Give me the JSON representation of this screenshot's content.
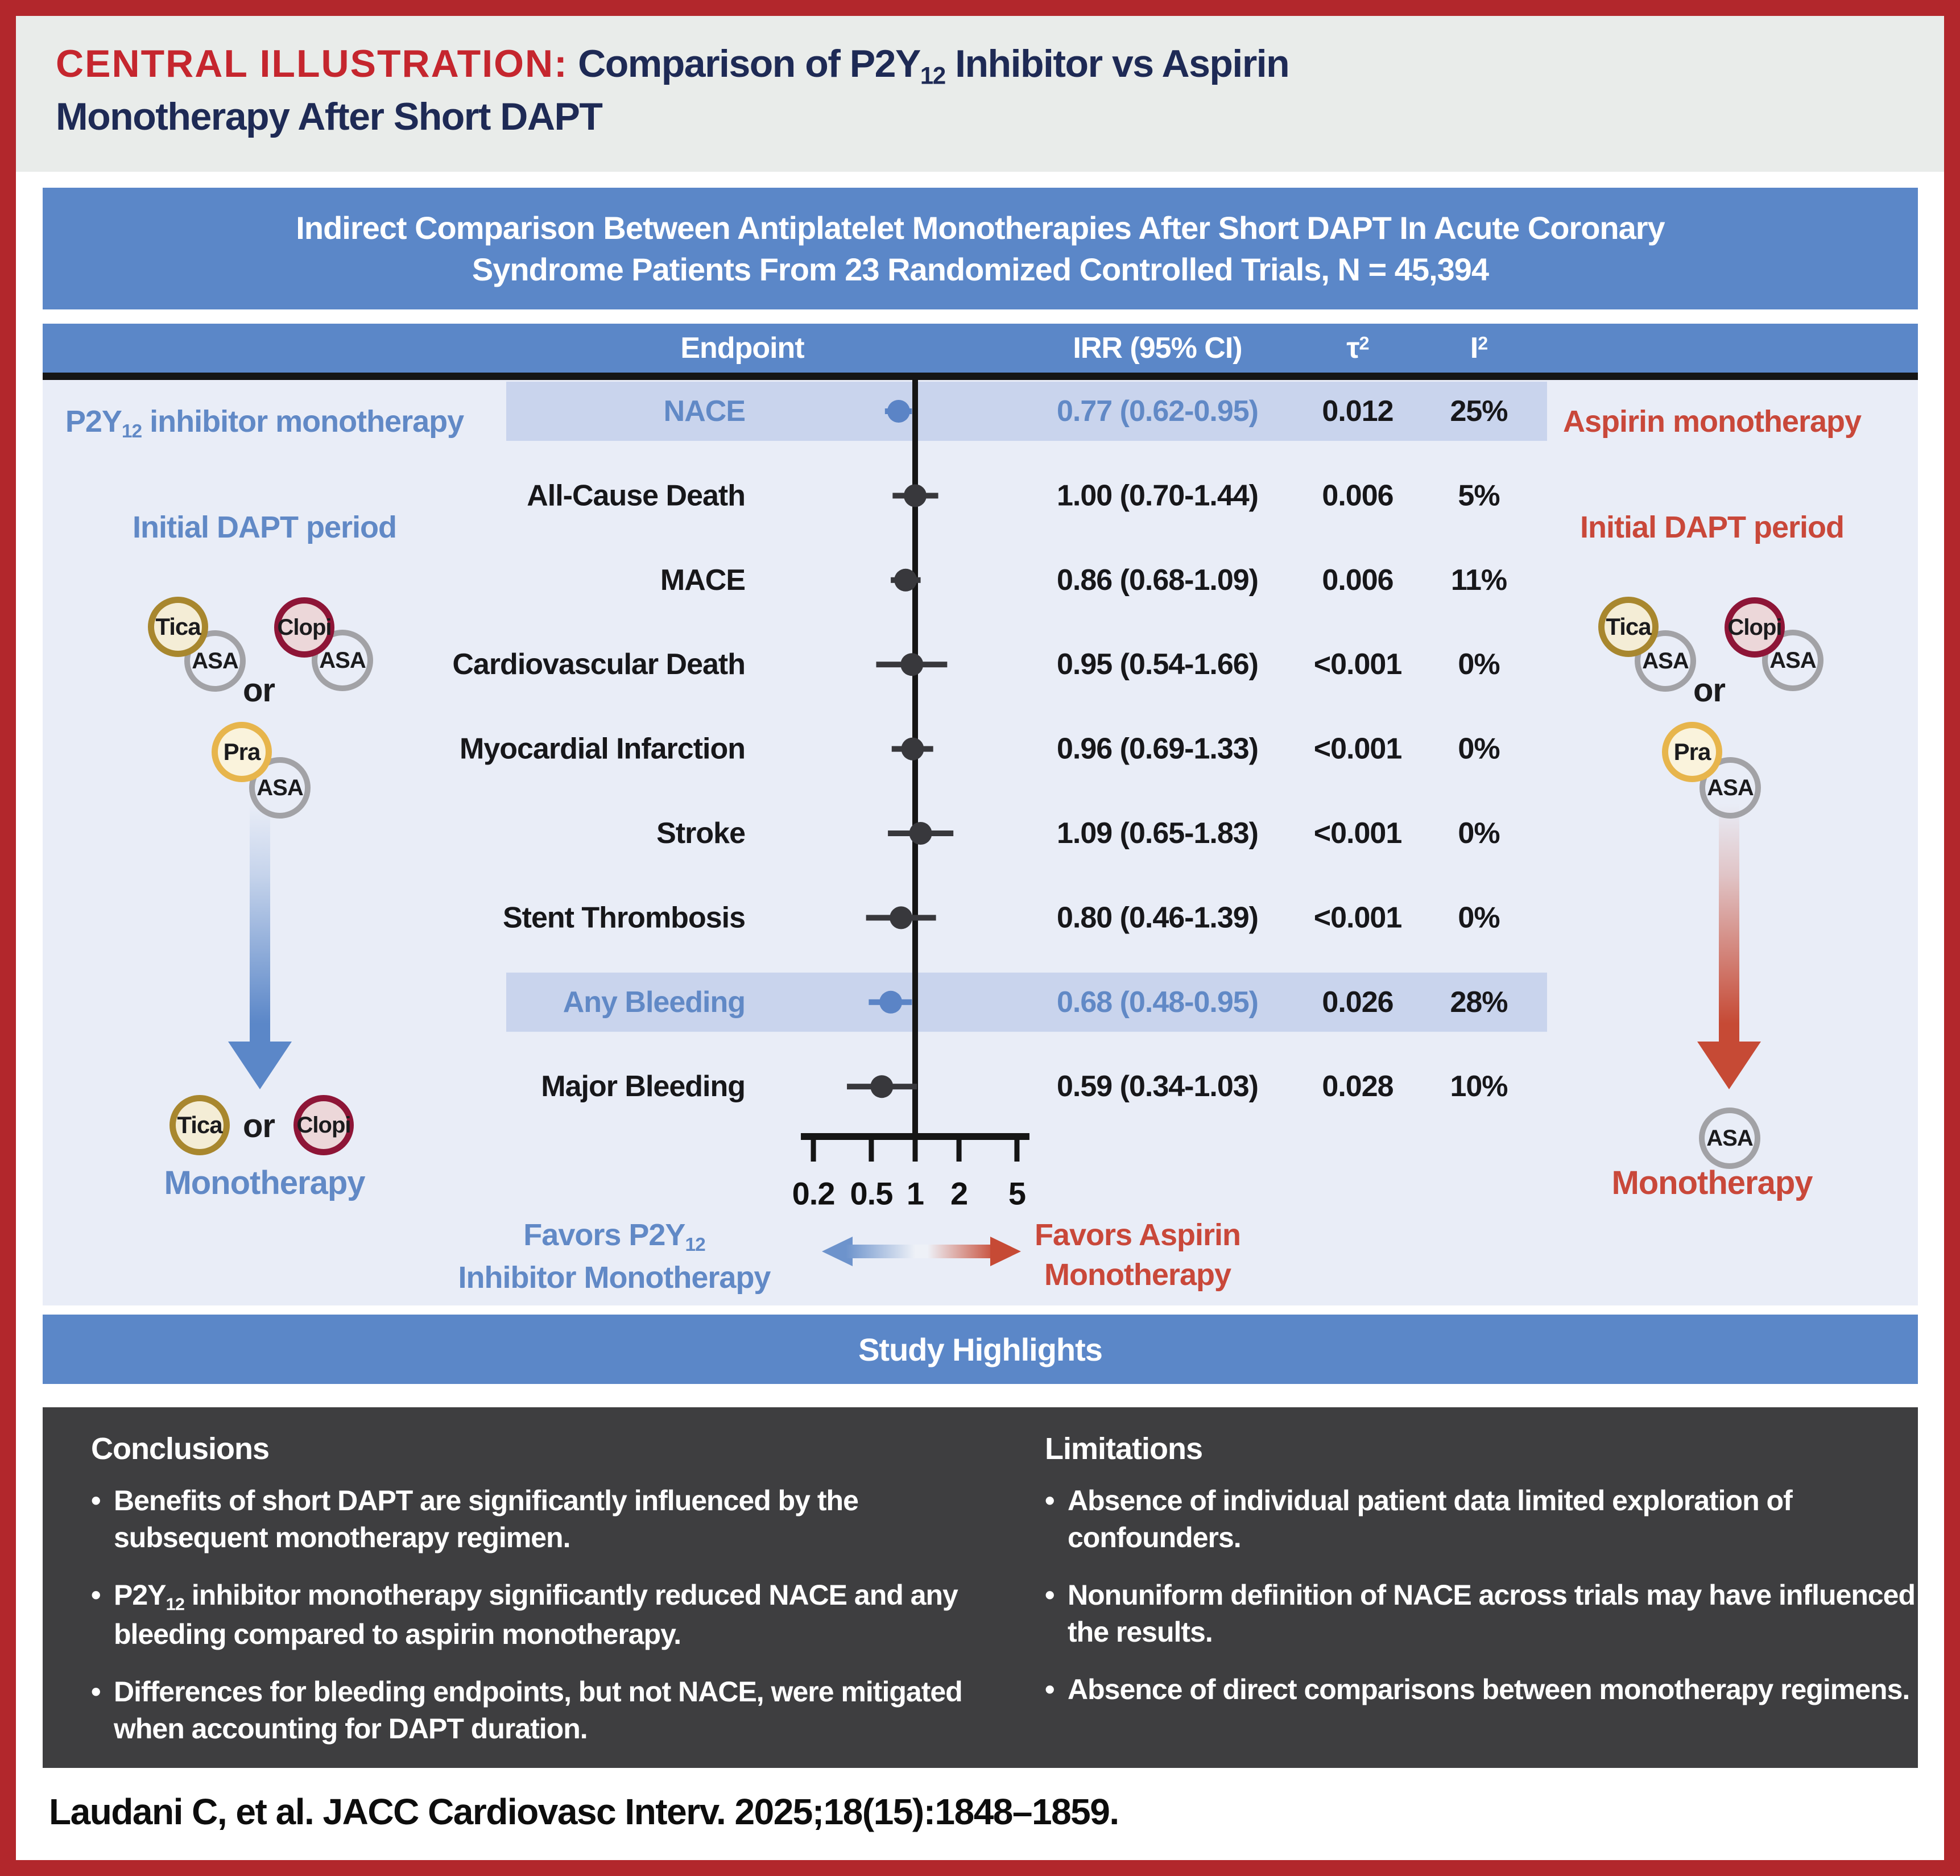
{
  "title": {
    "label": "CENTRAL ILLUSTRATION:",
    "rest_prefix": " Comparison of P2Y",
    "rest_sub": "12",
    "rest_line1_suffix": " Inhibitor vs Aspirin",
    "line2": "Monotherapy After Short DAPT"
  },
  "banner": {
    "line1": "Indirect Comparison Between Antiplatelet Monotherapies After Short DAPT In Acute Coronary",
    "line2": "Syndrome Patients From 23 Randomized Controlled Trials, N = 45,394"
  },
  "table_header": {
    "endpoint": "Endpoint",
    "irr": "IRR (95% CI)",
    "tau_base": "τ",
    "tau_sup": "2",
    "i_base": "I",
    "i_sup": "2"
  },
  "chart_data": {
    "type": "forest",
    "x_scale": "log",
    "null_line": 1,
    "x_ticks": [
      "0.2",
      "0.5",
      "1",
      "2",
      "5"
    ],
    "x_tick_values": [
      0.2,
      0.5,
      1,
      2,
      5
    ],
    "columns": [
      "Endpoint",
      "IRR (95% CI)",
      "τ2",
      "I2"
    ],
    "rows": [
      {
        "endpoint": "NACE",
        "irr_text": "0.77 (0.62-0.95)",
        "est": 0.77,
        "lo": 0.62,
        "hi": 0.95,
        "tau2": "0.012",
        "i2": "25%",
        "highlight": true
      },
      {
        "endpoint": "All-Cause Death",
        "irr_text": "1.00 (0.70-1.44)",
        "est": 1.0,
        "lo": 0.7,
        "hi": 1.44,
        "tau2": "0.006",
        "i2": "5%",
        "highlight": false
      },
      {
        "endpoint": "MACE",
        "irr_text": "0.86 (0.68-1.09)",
        "est": 0.86,
        "lo": 0.68,
        "hi": 1.09,
        "tau2": "0.006",
        "i2": "11%",
        "highlight": false
      },
      {
        "endpoint": "Cardiovascular Death",
        "irr_text": "0.95 (0.54-1.66)",
        "est": 0.95,
        "lo": 0.54,
        "hi": 1.66,
        "tau2": "<0.001",
        "i2": "0%",
        "highlight": false
      },
      {
        "endpoint": "Myocardial Infarction",
        "irr_text": "0.96 (0.69-1.33)",
        "est": 0.96,
        "lo": 0.69,
        "hi": 1.33,
        "tau2": "<0.001",
        "i2": "0%",
        "highlight": false
      },
      {
        "endpoint": "Stroke",
        "irr_text": "1.09 (0.65-1.83)",
        "est": 1.09,
        "lo": 0.65,
        "hi": 1.83,
        "tau2": "<0.001",
        "i2": "0%",
        "highlight": false
      },
      {
        "endpoint": "Stent Thrombosis",
        "irr_text": "0.80 (0.46-1.39)",
        "est": 0.8,
        "lo": 0.46,
        "hi": 1.39,
        "tau2": "<0.001",
        "i2": "0%",
        "highlight": false
      },
      {
        "endpoint": "Any Bleeding",
        "irr_text": "0.68 (0.48-0.95)",
        "est": 0.68,
        "lo": 0.48,
        "hi": 0.95,
        "tau2": "0.026",
        "i2": "28%",
        "highlight": true
      },
      {
        "endpoint": "Major Bleeding",
        "irr_text": "0.59 (0.34-1.03)",
        "est": 0.59,
        "lo": 0.34,
        "hi": 1.03,
        "tau2": "0.028",
        "i2": "10%",
        "highlight": false
      }
    ]
  },
  "drugs": {
    "tica": "Tica",
    "clopi": "Clopi",
    "pra": "Pra",
    "asa": "ASA",
    "or": "or"
  },
  "left_panel": {
    "title_prefix": "P2Y",
    "title_sub": "12",
    "title_suffix": " inhibitor monotherapy",
    "period": "Initial DAPT period",
    "mono_label": "Monotherapy"
  },
  "right_panel": {
    "title": "Aspirin monotherapy",
    "period": "Initial DAPT period",
    "mono_label": "Monotherapy"
  },
  "favors": {
    "left_line1_prefix": "Favors P2Y",
    "left_line1_sub": "12",
    "left_line2": "Inhibitor Monotherapy",
    "right_line1": "Favors Aspirin",
    "right_line2": "Monotherapy"
  },
  "highlights": {
    "bar": "Study Highlights",
    "conclusions": {
      "heading": "Conclusions",
      "bullet1": "Benefits of short DAPT are significantly influenced by the subsequent monotherapy regimen.",
      "bullet2_prefix": "P2Y",
      "bullet2_sub": "12",
      "bullet2_rest": " inhibitor monotherapy significantly reduced NACE and any bleeding compared to aspirin monotherapy.",
      "bullet3": "Differences for bleeding endpoints, but not NACE, were mitigated when accounting for DAPT duration."
    },
    "limitations": {
      "heading": "Limitations",
      "bullet1": "Absence of individual patient data limited exploration of confounders.",
      "bullet2": "Nonuniform definition of NACE across trials may have influenced the results.",
      "bullet3": "Absence of direct comparisons between monotherapy regimens."
    }
  },
  "citation": "Laudani C, et al. JACC Cardiovasc Interv. 2025;18(15):1848–1859.",
  "colors": {
    "frame_red": "#b2272c",
    "title_red": "#c5262e",
    "title_navy": "#1e2a55",
    "banner_blue": "#5b87c8",
    "panel_bg": "#e9edf7",
    "row_highlight": "#c9d4ed",
    "marker_blue": "#5b84c6",
    "marker_dark": "#38383c",
    "endpoint_highlight_text": "#6189c6",
    "text_dark": "#17171a",
    "side_red": "#c9483a",
    "arrow_red": "#c64a35",
    "gold_border": "#a8872e",
    "maroon_border": "#8e1537",
    "yellow_border": "#e7b54c",
    "gray_border": "#a2a2a6",
    "dark_box": "#3e3e40"
  }
}
